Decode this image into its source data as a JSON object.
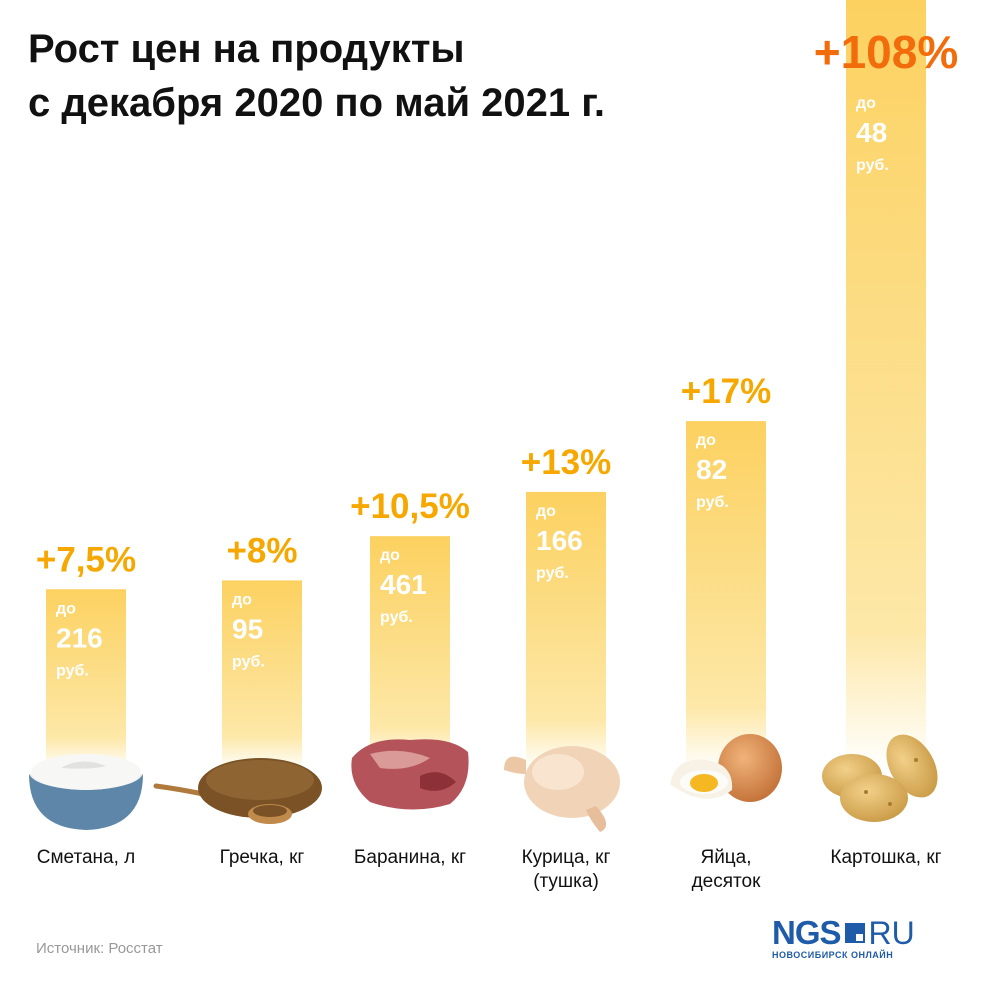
{
  "title_lines": [
    "Рост цен на продукты",
    "с декабря 2020 по май 2021 г."
  ],
  "source": "Источник: Росстат",
  "logo": {
    "main": "NGS",
    "suffix": "RU",
    "sub": "НОВОСИБИРСК ОНЛАЙН"
  },
  "colors": {
    "bar_top": "#fcd160",
    "bar_bottom": "#ffffff",
    "pct": "#f6a800",
    "pct_highlight": "#f36c0c",
    "text": "#111111"
  },
  "chart_data": {
    "type": "bar",
    "unit_prefix": "до",
    "unit_suffix": "руб.",
    "categories": [
      "Сметана, л",
      "Гречка, кг",
      "Баранина, кг",
      "Курица, кг (тушка)",
      "Яйца, десяток",
      "Картошка, кг"
    ],
    "categories_lines": [
      [
        "Сметана, л"
      ],
      [
        "Гречка, кг"
      ],
      [
        "Баранина, кг"
      ],
      [
        "Курица, кг",
        "(тушка)"
      ],
      [
        "Яйца,",
        "десяток"
      ],
      [
        "Картошка, кг"
      ]
    ],
    "growth_percent": [
      7.5,
      8,
      10.5,
      13,
      17,
      108
    ],
    "growth_labels": [
      "+7,5%",
      "+8%",
      "+10,5%",
      "+13%",
      "+17%",
      "+108%"
    ],
    "prices": [
      "216",
      "95",
      "461",
      "166",
      "82",
      "48"
    ],
    "icons": [
      "sour-cream-bowl-icon",
      "buckwheat-icon",
      "lamb-meat-icon",
      "chicken-icon",
      "eggs-icon",
      "potatoes-icon"
    ]
  }
}
